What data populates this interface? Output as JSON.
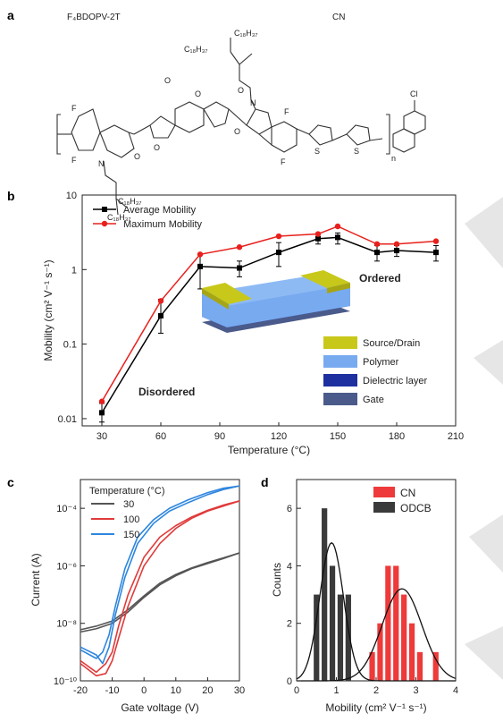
{
  "panel_a": {
    "label": "a",
    "polymer_name": "F₄BDOPV-2T",
    "solvent_name": "CN",
    "atoms": {
      "F": "F",
      "Cl": "Cl",
      "N": "N",
      "O": "O",
      "S": "S",
      "n": "n",
      "chain": "C₁₈H₃₇"
    }
  },
  "panel_b": {
    "label": "b",
    "annotations": {
      "disordered": "Disordered",
      "ordered": "Ordered"
    },
    "device_legend": [
      {
        "label": "Source/Drain",
        "color": "#c8c81a"
      },
      {
        "label": "Polymer",
        "color": "#78aaf0"
      },
      {
        "label": "Dielectric layer",
        "color": "#1e2fa0"
      },
      {
        "label": "Gate",
        "color": "#4a5a8a"
      }
    ]
  },
  "panel_c": {
    "label": "c"
  },
  "panel_d": {
    "label": "d"
  },
  "chart_data": [
    {
      "type": "line",
      "xlabel": "Temperature (°C)",
      "ylabel": "Mobility (cm² V⁻¹ s⁻¹)",
      "xlim": [
        20,
        210
      ],
      "ylim": [
        0.008,
        10
      ],
      "yscale": "log",
      "xticks": [
        "30",
        "60",
        "90",
        "120",
        "150",
        "180",
        "210"
      ],
      "yticks": [
        "0.01",
        "0.1",
        "1",
        "10"
      ],
      "legend_placement": "top-left",
      "x": [
        30,
        60,
        80,
        100,
        120,
        140,
        150,
        170,
        180,
        200
      ],
      "series": [
        {
          "name": "Average Mobility",
          "color": "#000000",
          "values": [
            0.012,
            0.24,
            1.1,
            1.05,
            1.7,
            2.6,
            2.7,
            1.7,
            1.8,
            1.7
          ],
          "errors_low": [
            0.009,
            0.14,
            0.55,
            0.8,
            1.1,
            2.2,
            2.2,
            1.3,
            1.5,
            1.3
          ],
          "errors_high": [
            0.016,
            0.4,
            1.6,
            1.3,
            2.3,
            3.0,
            3.1,
            2.1,
            2.1,
            2.1
          ]
        },
        {
          "name": "Maximum Mobility",
          "color": "#e8201c",
          "values": [
            0.017,
            0.38,
            1.6,
            2.0,
            2.8,
            3.0,
            3.8,
            2.2,
            2.2,
            2.4
          ]
        }
      ]
    },
    {
      "type": "line",
      "xlabel": "Gate voltage (V)",
      "ylabel": "Current (A)",
      "xlim": [
        -20,
        30
      ],
      "ylim": [
        1e-10,
        0.001
      ],
      "yscale": "log",
      "xticks": [
        "-20",
        "-10",
        "0",
        "10",
        "20",
        "30"
      ],
      "yticks": [
        "10⁻¹⁰",
        "10⁻⁸",
        "10⁻⁶",
        "10⁻⁴"
      ],
      "legend_title": "Temperature (°C)",
      "legend_placement": "top-left",
      "series": [
        {
          "name": "30",
          "color": "#555555",
          "forward": {
            "x": [
              -20,
              -15,
              -10,
              -5,
              0,
              5,
              10,
              15,
              20,
              25,
              30
            ],
            "y": [
              6e-09,
              8e-09,
              1.2e-08,
              3e-08,
              9e-08,
              2.5e-07,
              5e-07,
              8.5e-07,
              1.3e-06,
              1.9e-06,
              2.8e-06
            ]
          },
          "reverse": {
            "x": [
              30,
              25,
              20,
              15,
              10,
              5,
              0,
              -5,
              -10,
              -15,
              -20
            ],
            "y": [
              2.8e-06,
              1.8e-06,
              1.2e-06,
              8e-07,
              4.5e-07,
              2.2e-07,
              8e-08,
              2.5e-08,
              1e-08,
              6.5e-09,
              5e-09
            ]
          }
        },
        {
          "name": "100",
          "color": "#e03a3a",
          "forward": {
            "x": [
              -20,
              -15,
              -12,
              -10,
              -8,
              -5,
              0,
              5,
              10,
              15,
              20,
              25,
              30
            ],
            "y": [
              4e-10,
              1.5e-10,
              1.8e-10,
              5e-10,
              3e-09,
              4e-08,
              1e-06,
              6e-06,
              2e-05,
              4.5e-05,
              8e-05,
              0.00012,
              0.00018
            ]
          },
          "reverse": {
            "x": [
              30,
              25,
              20,
              15,
              10,
              5,
              0,
              -5,
              -8,
              -10,
              -12,
              -15,
              -20
            ],
            "y": [
              0.00018,
              0.00013,
              8.5e-05,
              5e-05,
              2.5e-05,
              1e-05,
              2e-06,
              1e-07,
              8e-09,
              1e-09,
              4e-10,
              2e-10,
              5e-10
            ]
          }
        },
        {
          "name": "150",
          "color": "#2e86de",
          "forward": {
            "x": [
              -20,
              -15,
              -13,
              -11,
              -9,
              -6,
              -2,
              3,
              8,
              14,
              20,
              25,
              30
            ],
            "y": [
              1.5e-09,
              8e-10,
              4e-10,
              1.5e-09,
              2e-08,
              4e-07,
              6e-06,
              3e-05,
              8e-05,
              0.00016,
              0.0003,
              0.00045,
              0.0006
            ]
          },
          "reverse": {
            "x": [
              30,
              25,
              20,
              14,
              8,
              3,
              -2,
              -6,
              -9,
              -11,
              -13,
              -15,
              -20
            ],
            "y": [
              0.0006,
              0.0005,
              0.00035,
              0.0002,
              0.0001,
              4e-05,
              1e-05,
              8e-07,
              4e-08,
              4e-09,
              1e-09,
              6e-10,
              1.2e-09
            ]
          }
        }
      ]
    },
    {
      "type": "bar",
      "xlabel": "Mobility (cm² V⁻¹ s⁻¹)",
      "ylabel": "Counts",
      "xlim": [
        0,
        4
      ],
      "ylim": [
        0,
        7
      ],
      "xticks": [
        "0",
        "1",
        "2",
        "3",
        "4"
      ],
      "yticks": [
        "0",
        "2",
        "4",
        "6"
      ],
      "legend_placement": "top-right",
      "bin_width": 0.2,
      "series": [
        {
          "name": "CN",
          "color": "#ee3a3a",
          "bins": [
            1.9,
            2.1,
            2.3,
            2.5,
            2.7,
            2.9,
            3.1,
            3.5
          ],
          "counts": [
            1,
            2,
            4,
            4,
            3,
            2,
            1,
            1
          ],
          "fit": {
            "mean": 2.65,
            "sigma": 0.5,
            "amplitude": 3.2
          }
        },
        {
          "name": "ODCB",
          "color": "#3a3a3a",
          "bins": [
            0.5,
            0.7,
            0.9,
            1.1,
            1.3
          ],
          "counts": [
            3,
            6,
            4,
            3,
            3
          ],
          "fit": {
            "mean": 0.88,
            "sigma": 0.3,
            "amplitude": 4.8
          }
        }
      ]
    }
  ]
}
